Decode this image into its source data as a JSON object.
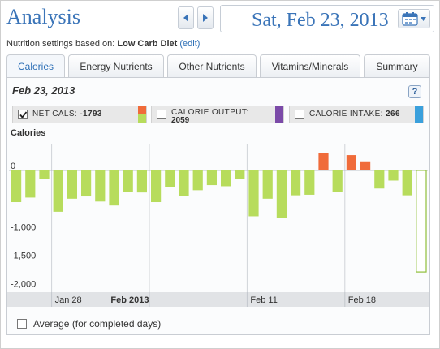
{
  "header": {
    "title": "Analysis",
    "date": "Sat, Feb 23, 2013"
  },
  "settings": {
    "prefix": "Nutrition settings based on:",
    "diet": "Low Carb Diet",
    "edit": "(edit)"
  },
  "tabs": [
    {
      "label": "Calories",
      "active": true
    },
    {
      "label": "Energy Nutrients",
      "active": false
    },
    {
      "label": "Other Nutrients",
      "active": false
    },
    {
      "label": "Vitamins/Minerals",
      "active": false
    },
    {
      "label": "Summary",
      "active": false
    }
  ],
  "panel": {
    "date": "Feb 23, 2013",
    "help": "?"
  },
  "legend": [
    {
      "label": "NET CALS:",
      "value": "-1793",
      "checked": true,
      "colors": [
        "#f06b3a",
        "#b7dc5c"
      ]
    },
    {
      "label": "CALORIE OUTPUT:",
      "value": "2059",
      "checked": false,
      "colors": [
        "#7b4aa8"
      ]
    },
    {
      "label": "CALORIE INTAKE:",
      "value": "266",
      "checked": false,
      "colors": [
        "#3aa0dc"
      ]
    }
  ],
  "average": {
    "label": "Average (for completed days)",
    "checked": false
  },
  "icons": {
    "prev": "chevron-left-icon",
    "next": "chevron-right-icon",
    "calendar": "calendar-icon",
    "help": "help-icon"
  },
  "colors": {
    "accent": "#3a74b8",
    "positive": "#f06b3a",
    "negative": "#b7dc5c",
    "selected_outline": "#8fbf3a"
  },
  "chart_data": {
    "type": "bar",
    "title": "Calories",
    "ylabel": "",
    "ylim": [
      -2150,
      400
    ],
    "yticks": [
      {
        "value": 0,
        "label": "0"
      },
      {
        "value": -1000,
        "label": "-1,000"
      },
      {
        "value": -1500,
        "label": "-1,500"
      },
      {
        "value": -2000,
        "label": "-2,000"
      }
    ],
    "xtick_labels": [
      {
        "label": "Jan 28",
        "bold": false,
        "day": 3
      },
      {
        "label": "Feb 2013",
        "bold": true,
        "day": 7
      },
      {
        "label": "Feb 11",
        "bold": false,
        "day": 17
      },
      {
        "label": "Feb 18",
        "bold": false,
        "day": 24
      }
    ],
    "month_divider_days": [
      3,
      10,
      17,
      24
    ],
    "start_date": "Jan 25, 2013",
    "values": [
      -560,
      -480,
      -150,
      -730,
      -500,
      -460,
      -550,
      -620,
      -380,
      -390,
      -560,
      -290,
      -450,
      -350,
      -260,
      -280,
      -150,
      -810,
      -500,
      -840,
      -440,
      -430,
      300,
      -380,
      270,
      160,
      -320,
      -180,
      -440,
      -1793
    ],
    "selected_index": 29
  }
}
